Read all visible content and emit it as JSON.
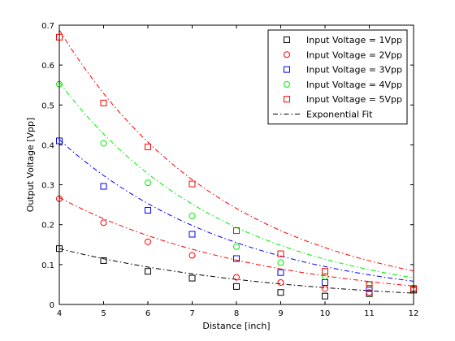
{
  "chart_data": {
    "type": "scatter",
    "title": "",
    "xlabel": "Distance [inch]",
    "ylabel": "Output Voltage [Vpp]",
    "xlim": [
      4,
      12
    ],
    "ylim": [
      0,
      0.7
    ],
    "xticks": [
      "4",
      "5",
      "6",
      "7",
      "8",
      "9",
      "10",
      "11",
      "12"
    ],
    "yticks": [
      "0",
      "0.1",
      "0.2",
      "0.3",
      "0.4",
      "0.5",
      "0.6",
      "0.7"
    ],
    "grid": false,
    "legend_position": "top-right",
    "x": [
      4,
      5,
      6,
      7,
      8,
      9,
      10,
      11,
      12
    ],
    "series": [
      {
        "name": "Input Voltage = 1Vpp",
        "marker": "square",
        "color": "#000000",
        "values": [
          0.14,
          0.11,
          0.083,
          0.066,
          0.045,
          0.03,
          0.021,
          0.027,
          0.036
        ],
        "fit": {
          "a": 0.14,
          "b": 0.2
        }
      },
      {
        "name": "Input Voltage = 2Vpp",
        "marker": "circle",
        "color": "#ff0000",
        "values": [
          0.265,
          0.205,
          0.157,
          0.123,
          0.068,
          0.055,
          0.04,
          0.03,
          0.038
        ],
        "fit": {
          "a": 0.268,
          "b": 0.22
        }
      },
      {
        "name": "Input Voltage = 3Vpp",
        "marker": "square",
        "color": "#0000ff",
        "values": [
          0.41,
          0.296,
          0.236,
          0.176,
          0.115,
          0.08,
          0.055,
          0.04,
          0.04
        ],
        "fit": {
          "a": 0.413,
          "b": 0.245
        }
      },
      {
        "name": "Input Voltage = 4Vpp",
        "marker": "circle",
        "color": "#00ee00",
        "values": [
          0.552,
          0.404,
          0.305,
          0.222,
          0.145,
          0.105,
          0.07,
          0.05,
          0.04
        ],
        "fit": {
          "a": 0.557,
          "b": 0.265
        }
      },
      {
        "name": "Input Voltage = 5Vpp",
        "marker": "square",
        "color": "#ff0000",
        "values": [
          0.67,
          0.505,
          0.395,
          0.302,
          0.185,
          0.127,
          0.083,
          0.05,
          0.04
        ],
        "fit": {
          "a": 0.688,
          "b": 0.2625
        }
      }
    ],
    "fit_legend": {
      "name": "Exponential Fit",
      "color": "#000000",
      "style": "dash-dot"
    }
  }
}
